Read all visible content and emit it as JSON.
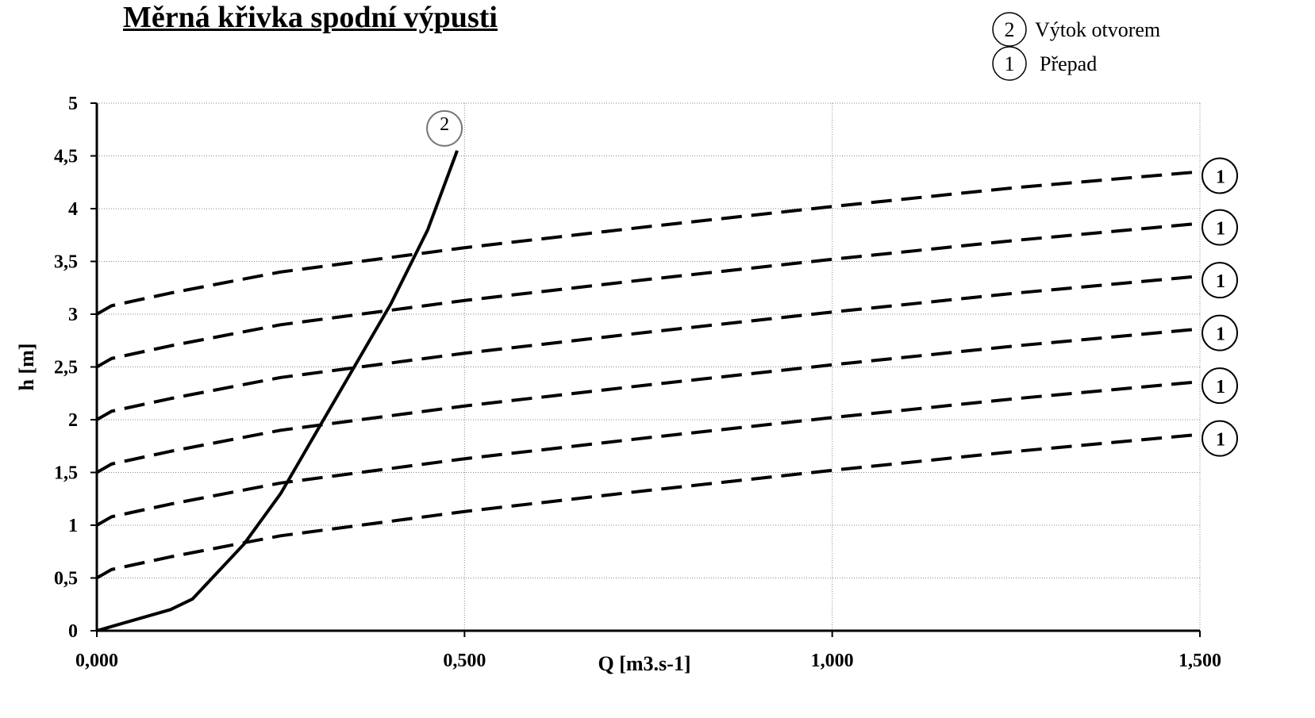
{
  "chart_data": {
    "type": "line",
    "title": "Měrná křivka spodní výpusti",
    "xlabel": "Q [m3.s-1]",
    "ylabel": "h [m]",
    "xlim": [
      0,
      1.5
    ],
    "ylim": [
      0,
      5
    ],
    "x_ticks": [
      "0,000",
      "0,500",
      "1,000",
      "1,500"
    ],
    "x_tick_values": [
      0,
      0.5,
      1.0,
      1.5
    ],
    "y_ticks": [
      "0",
      "0,5",
      "1",
      "1,5",
      "2",
      "2,5",
      "3",
      "3,5",
      "4",
      "4,5",
      "5"
    ],
    "y_tick_values": [
      0,
      0.5,
      1,
      1.5,
      2,
      2.5,
      3,
      3.5,
      4,
      4.5,
      5
    ],
    "grid": true,
    "legend": {
      "position": "top-right",
      "entries": [
        {
          "marker": "2",
          "label": "Výtok otvorem"
        },
        {
          "marker": "1",
          "label": "Přepad"
        }
      ]
    },
    "series": [
      {
        "marker": "2",
        "style": "solid",
        "x": [
          0,
          0.05,
          0.1,
          0.13,
          0.2,
          0.25,
          0.3,
          0.35,
          0.4,
          0.45,
          0.49
        ],
        "y": [
          0,
          0.1,
          0.2,
          0.3,
          0.82,
          1.3,
          1.9,
          2.5,
          3.1,
          3.8,
          4.55
        ]
      },
      {
        "marker": "1",
        "style": "dashed",
        "x": [
          0,
          0.02,
          0.1,
          0.25,
          0.5,
          0.75,
          1.0,
          1.25,
          1.5
        ],
        "y": [
          3.0,
          3.08,
          3.2,
          3.4,
          3.63,
          3.83,
          4.02,
          4.2,
          4.35
        ]
      },
      {
        "marker": "1",
        "style": "dashed",
        "x": [
          0,
          0.02,
          0.1,
          0.25,
          0.5,
          0.75,
          1.0,
          1.25,
          1.5
        ],
        "y": [
          2.5,
          2.58,
          2.7,
          2.9,
          3.13,
          3.33,
          3.52,
          3.7,
          3.86
        ]
      },
      {
        "marker": "1",
        "style": "dashed",
        "x": [
          0,
          0.02,
          0.1,
          0.25,
          0.5,
          0.75,
          1.0,
          1.25,
          1.5
        ],
        "y": [
          2.0,
          2.08,
          2.2,
          2.4,
          2.63,
          2.83,
          3.02,
          3.2,
          3.36
        ]
      },
      {
        "marker": "1",
        "style": "dashed",
        "x": [
          0,
          0.02,
          0.1,
          0.25,
          0.5,
          0.75,
          1.0,
          1.25,
          1.5
        ],
        "y": [
          1.5,
          1.58,
          1.7,
          1.9,
          2.13,
          2.33,
          2.52,
          2.7,
          2.86
        ]
      },
      {
        "marker": "1",
        "style": "dashed",
        "x": [
          0,
          0.02,
          0.1,
          0.25,
          0.5,
          0.75,
          1.0,
          1.25,
          1.5
        ],
        "y": [
          1.0,
          1.08,
          1.2,
          1.4,
          1.63,
          1.83,
          2.02,
          2.2,
          2.36
        ]
      },
      {
        "marker": "1",
        "style": "dashed",
        "x": [
          0,
          0.02,
          0.1,
          0.25,
          0.5,
          0.75,
          1.0,
          1.25,
          1.5
        ],
        "y": [
          0.5,
          0.58,
          0.7,
          0.9,
          1.13,
          1.33,
          1.52,
          1.7,
          1.86
        ]
      }
    ]
  }
}
